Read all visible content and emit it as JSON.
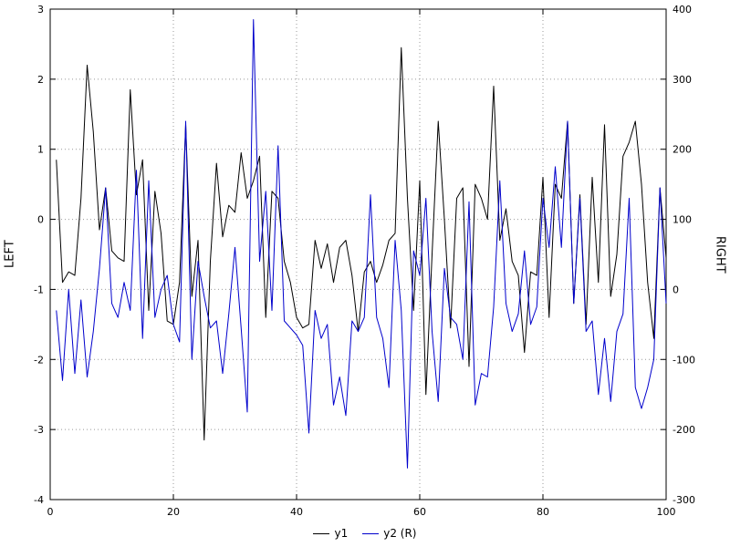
{
  "chart_data": {
    "type": "line",
    "title": "",
    "xlabel": "",
    "grid": true,
    "legend_position": "bottom-center",
    "x_range": [
      0,
      100
    ],
    "x_ticks": [
      0,
      20,
      40,
      60,
      80,
      100
    ],
    "left_axis": {
      "label": "LEFT",
      "range": [
        -4,
        3
      ],
      "ticks": [
        3,
        2,
        1,
        0,
        -1,
        -2,
        -3,
        -4
      ]
    },
    "right_axis": {
      "label": "RIGHT",
      "range": [
        -300,
        400
      ],
      "ticks": [
        400,
        300,
        200,
        100,
        0,
        -100,
        -200,
        -300
      ]
    },
    "x": [
      1,
      2,
      3,
      4,
      5,
      6,
      7,
      8,
      9,
      10,
      11,
      12,
      13,
      14,
      15,
      16,
      17,
      18,
      19,
      20,
      21,
      22,
      23,
      24,
      25,
      26,
      27,
      28,
      29,
      30,
      31,
      32,
      33,
      34,
      35,
      36,
      37,
      38,
      39,
      40,
      41,
      42,
      43,
      44,
      45,
      46,
      47,
      48,
      49,
      50,
      51,
      52,
      53,
      54,
      55,
      56,
      57,
      58,
      59,
      60,
      61,
      62,
      63,
      64,
      65,
      66,
      67,
      68,
      69,
      70,
      71,
      72,
      73,
      74,
      75,
      76,
      77,
      78,
      79,
      80,
      81,
      82,
      83,
      84,
      85,
      86,
      87,
      88,
      89,
      90,
      91,
      92,
      93,
      94,
      95,
      96,
      97,
      98,
      99,
      100
    ],
    "series": [
      {
        "name": "y1",
        "axis": "left",
        "color": "#000000",
        "values": [
          0.85,
          -0.9,
          -0.75,
          -0.8,
          0.3,
          2.2,
          1.25,
          -0.15,
          0.45,
          -0.45,
          -0.55,
          -0.6,
          1.85,
          0.35,
          0.85,
          -1.3,
          0.4,
          -0.2,
          -1.45,
          -1.5,
          -0.9,
          1.35,
          -1.1,
          -0.3,
          -3.15,
          -0.6,
          0.8,
          -0.25,
          0.2,
          0.1,
          0.95,
          0.3,
          0.55,
          0.9,
          -1.4,
          0.4,
          0.3,
          -0.6,
          -0.9,
          -1.4,
          -1.55,
          -1.5,
          -0.3,
          -0.7,
          -0.35,
          -0.9,
          -0.4,
          -0.3,
          -0.8,
          -1.6,
          -0.75,
          -0.6,
          -0.9,
          -0.65,
          -0.3,
          -0.2,
          2.45,
          0.3,
          -1.3,
          0.55,
          -2.5,
          -0.5,
          1.4,
          0.0,
          -1.55,
          0.3,
          0.45,
          -2.1,
          0.5,
          0.3,
          0.0,
          1.9,
          -0.3,
          0.15,
          -0.6,
          -0.8,
          -1.9,
          -0.75,
          -0.8,
          0.6,
          -1.4,
          0.5,
          0.3,
          1.4,
          -1.2,
          0.35,
          -1.5,
          0.6,
          -0.9,
          1.35,
          -1.1,
          -0.5,
          0.9,
          1.1,
          1.4,
          0.5,
          -0.9,
          -1.7,
          0.45,
          -0.55
        ]
      },
      {
        "name": "y2 (R)",
        "axis": "right",
        "color": "#0000cc",
        "values": [
          -30,
          -130,
          0,
          -120,
          -15,
          -125,
          -60,
          30,
          145,
          -20,
          -40,
          10,
          -30,
          170,
          -70,
          155,
          -40,
          0,
          20,
          -50,
          -75,
          240,
          -100,
          40,
          -10,
          -55,
          -45,
          -120,
          -35,
          60,
          -55,
          -175,
          385,
          40,
          140,
          -30,
          205,
          -45,
          -55,
          -65,
          -80,
          -205,
          -30,
          -70,
          -50,
          -165,
          -125,
          -180,
          -45,
          -60,
          -40,
          135,
          -40,
          -70,
          -140,
          70,
          -30,
          -255,
          55,
          20,
          130,
          -60,
          -160,
          30,
          -40,
          -50,
          -100,
          125,
          -165,
          -120,
          -125,
          -25,
          155,
          -20,
          -60,
          -35,
          55,
          -50,
          -25,
          130,
          60,
          175,
          60,
          240,
          -20,
          130,
          -60,
          -45,
          -150,
          -70,
          -160,
          -60,
          -35,
          130,
          -140,
          -170,
          -140,
          -100,
          145,
          -20
        ]
      }
    ]
  }
}
